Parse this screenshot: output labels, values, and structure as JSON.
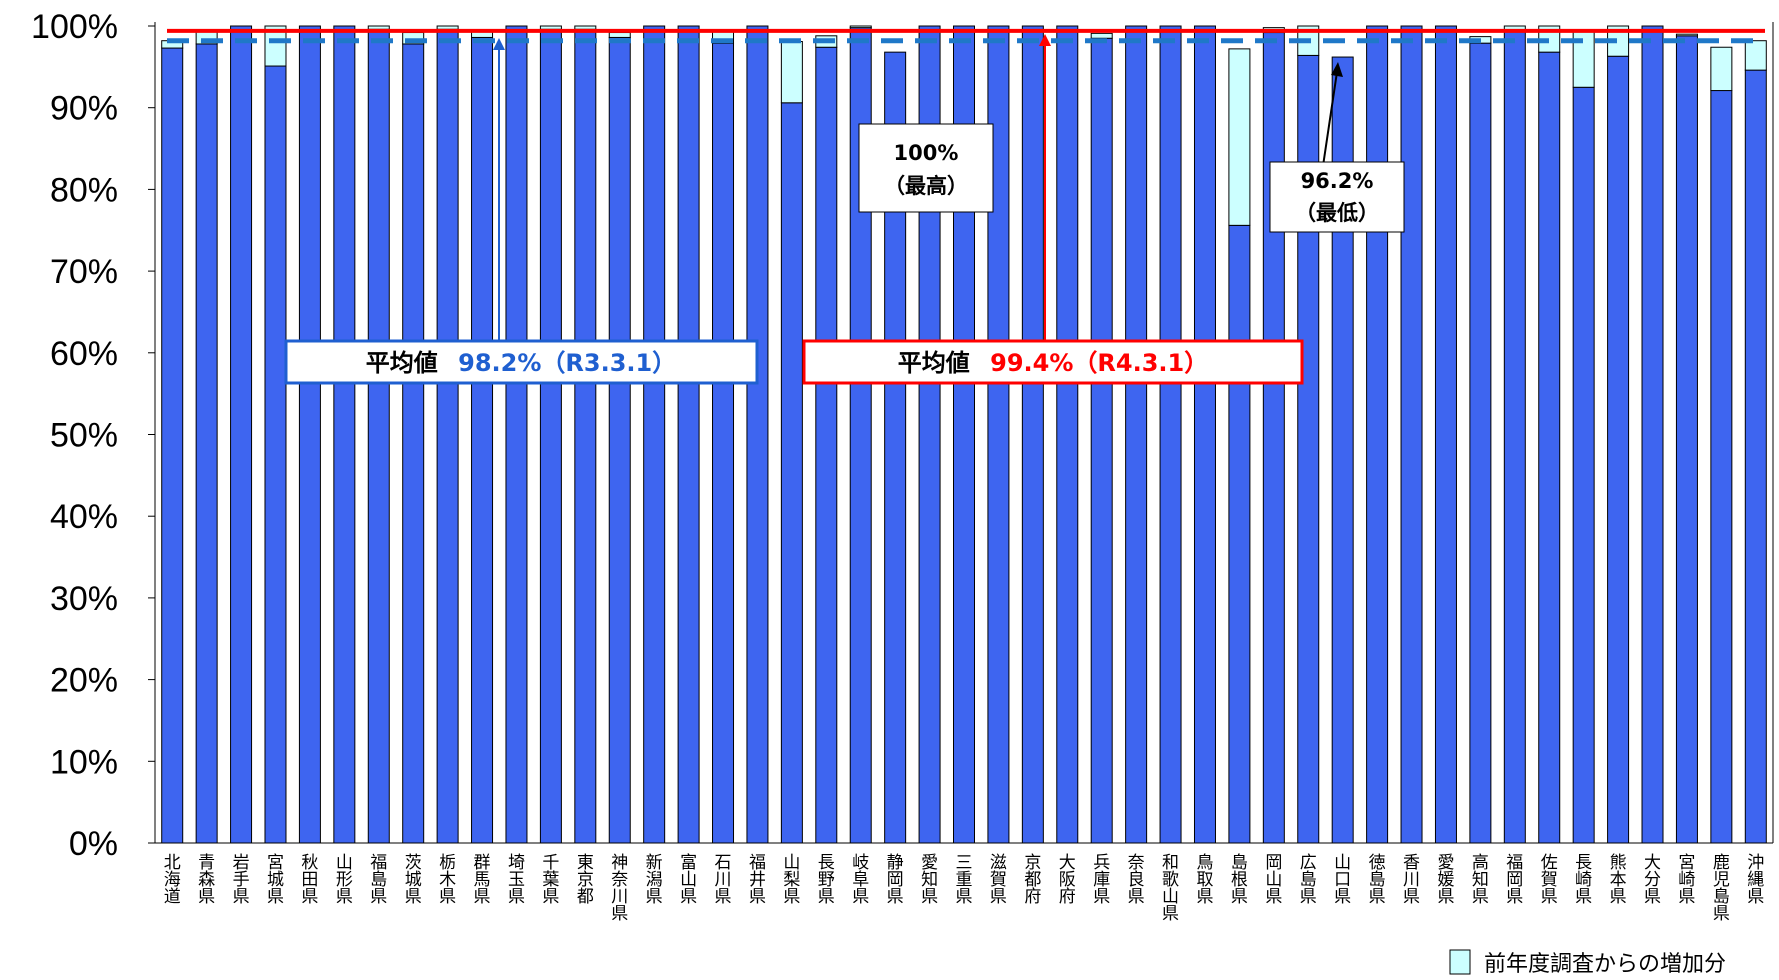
{
  "chart_data": {
    "type": "bar",
    "stacked": true,
    "ylim": [
      0,
      100
    ],
    "yticks": [
      "0%",
      "10%",
      "20%",
      "30%",
      "40%",
      "50%",
      "60%",
      "70%",
      "80%",
      "90%",
      "100%"
    ],
    "categories": [
      "北海道",
      "青森県",
      "岩手県",
      "宮城県",
      "秋田県",
      "山形県",
      "福島県",
      "茨城県",
      "栃木県",
      "群馬県",
      "埼玉県",
      "千葉県",
      "東京都",
      "神奈川県",
      "新潟県",
      "富山県",
      "石川県",
      "福井県",
      "山梨県",
      "長野県",
      "岐阜県",
      "静岡県",
      "愛知県",
      "三重県",
      "滋賀県",
      "京都府",
      "大阪府",
      "兵庫県",
      "奈良県",
      "和歌山県",
      "鳥取県",
      "島根県",
      "岡山県",
      "広島県",
      "山口県",
      "徳島県",
      "香川県",
      "愛媛県",
      "高知県",
      "福岡県",
      "佐賀県",
      "長崎県",
      "熊本県",
      "大分県",
      "宮崎県",
      "鹿児島県",
      "沖縄県"
    ],
    "series": [
      {
        "key": "base",
        "color": "#3E65F0",
        "values": [
          97.3,
          97.8,
          100,
          95.1,
          100,
          100,
          99.6,
          97.8,
          99.6,
          98.6,
          100,
          99.6,
          99.6,
          98.6,
          100,
          100,
          97.9,
          100,
          90.6,
          97.4,
          99.8,
          96.8,
          100,
          100,
          100,
          100,
          100,
          98.5,
          100,
          100,
          100,
          75.6,
          99.2,
          96.4,
          96.2,
          100,
          100,
          100,
          97.9,
          99.4,
          96.8,
          92.5,
          96.3,
          100,
          98.8,
          92.1,
          94.6
        ]
      },
      {
        "key": "increase",
        "name": "前年度調査からの増加分",
        "color": "#CCFFFF",
        "values": [
          0.9,
          1.6,
          0,
          4.9,
          0,
          0,
          0.4,
          1.4,
          0.4,
          0.9,
          0,
          0.4,
          0.4,
          0.6,
          0,
          0,
          1.6,
          0,
          7.5,
          1.4,
          0.2,
          0,
          0,
          0,
          0,
          0,
          0,
          0.6,
          0,
          0,
          0,
          21.6,
          0.6,
          3.6,
          0,
          0,
          0,
          0,
          0.8,
          0.6,
          3.2,
          7.0,
          3.7,
          0,
          0.2,
          5.3,
          3.6
        ]
      }
    ],
    "reference_lines": [
      {
        "key": "r3",
        "value": 98.2,
        "color": "#1F78C8",
        "style": "dashed"
      },
      {
        "key": "r4",
        "value": 99.4,
        "color": "#FF0000",
        "style": "solid"
      }
    ],
    "annotations": {
      "avg_r3": {
        "label": "平均値",
        "value": "98.2%（R3.3.1）",
        "color": "#1F5FD0"
      },
      "avg_r4": {
        "label": "平均値",
        "value": "99.4%（R4.3.1）",
        "color": "#FF0000"
      },
      "max": {
        "line1": "100%",
        "line2": "（最高）"
      },
      "min": {
        "line1": "96.2%",
        "line2": "（最低）"
      }
    },
    "legend": {
      "label": "前年度調査からの増加分",
      "position": "bottom-right"
    },
    "grid": false
  }
}
